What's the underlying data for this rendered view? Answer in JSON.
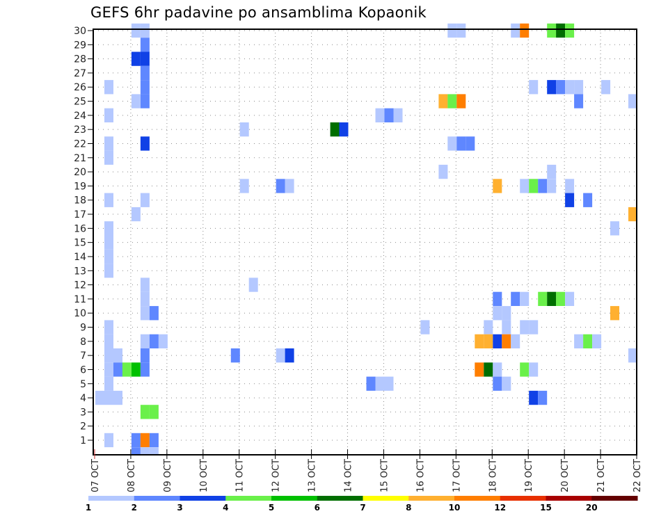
{
  "chart_data": {
    "type": "heatmap",
    "title": "GEFS 6hr padavine po ansamblima Kopaonik",
    "xlabel": "",
    "ylabel": "",
    "y_ticks": [
      "1",
      "2",
      "3",
      "4",
      "5",
      "6",
      "7",
      "8",
      "9",
      "10",
      "11",
      "12",
      "13",
      "14",
      "15",
      "16",
      "17",
      "18",
      "19",
      "20",
      "21",
      "22",
      "23",
      "24",
      "25",
      "26",
      "27",
      "28",
      "29",
      "30"
    ],
    "x_ticks": [
      "07 OCT",
      "08 OCT",
      "09 OCT",
      "10 OCT",
      "11 OCT",
      "12 OCT",
      "13 OCT",
      "14 OCT",
      "15 OCT",
      "16 OCT",
      "17 OCT",
      "18 OCT",
      "19 OCT",
      "20 OCT",
      "21 OCT",
      "22 OCT"
    ],
    "time_step_hours": 6,
    "grid": true,
    "colorbar": {
      "placement": "bottom",
      "labels": [
        "1",
        "2",
        "3",
        "4",
        "5",
        "6",
        "7",
        "8",
        "10",
        "12",
        "15",
        "20"
      ],
      "colors": [
        "#b4c8ff",
        "#5f87ff",
        "#1041e6",
        "#6af04a",
        "#00c000",
        "#006e00",
        "#ffff00",
        "#ffb030",
        "#ff7e00",
        "#e83000",
        "#a80000",
        "#640000"
      ]
    },
    "cells_note": "each cell: [member, six-hour step index from 07 OCT 00, color level index 1-12]",
    "cells": [
      [
        30,
        4,
        1
      ],
      [
        30,
        5,
        1
      ],
      [
        29,
        5,
        2
      ],
      [
        28,
        4,
        3
      ],
      [
        28,
        5,
        3
      ],
      [
        27,
        5,
        2
      ],
      [
        26,
        5,
        2
      ],
      [
        25,
        5,
        2
      ],
      [
        25,
        4,
        1
      ],
      [
        26,
        1,
        1
      ],
      [
        24,
        1,
        1
      ],
      [
        22,
        1,
        1
      ],
      [
        21,
        1,
        1
      ],
      [
        22,
        5,
        3
      ],
      [
        18,
        1,
        1
      ],
      [
        16,
        1,
        1
      ],
      [
        15,
        1,
        1
      ],
      [
        14,
        1,
        1
      ],
      [
        13,
        1,
        1
      ],
      [
        18,
        5,
        1
      ],
      [
        17,
        4,
        1
      ],
      [
        12,
        5,
        1
      ],
      [
        11,
        5,
        1
      ],
      [
        10,
        5,
        1
      ],
      [
        10,
        6,
        2
      ],
      [
        9,
        1,
        1
      ],
      [
        8,
        1,
        1
      ],
      [
        7,
        1,
        1
      ],
      [
        6,
        1,
        1
      ],
      [
        5,
        1,
        1
      ],
      [
        4,
        0,
        1
      ],
      [
        4,
        1,
        1
      ],
      [
        4,
        2,
        1
      ],
      [
        7,
        2,
        1
      ],
      [
        6,
        2,
        2
      ],
      [
        6,
        3,
        4
      ],
      [
        6,
        4,
        5
      ],
      [
        6,
        5,
        2
      ],
      [
        7,
        5,
        2
      ],
      [
        8,
        5,
        1
      ],
      [
        8,
        6,
        2
      ],
      [
        8,
        7,
        1
      ],
      [
        3,
        5,
        4
      ],
      [
        3,
        6,
        4
      ],
      [
        1,
        1,
        1
      ],
      [
        1,
        4,
        2
      ],
      [
        1,
        5,
        9
      ],
      [
        1,
        6,
        2
      ],
      [
        0,
        4,
        2
      ],
      [
        0,
        5,
        1
      ],
      [
        0,
        6,
        1
      ],
      [
        23,
        16,
        1
      ],
      [
        19,
        16,
        1
      ],
      [
        19,
        20,
        2
      ],
      [
        19,
        21,
        1
      ],
      [
        12,
        17,
        1
      ],
      [
        7,
        15,
        2
      ],
      [
        7,
        20,
        1
      ],
      [
        7,
        21,
        3
      ],
      [
        5,
        30,
        2
      ],
      [
        5,
        31,
        1
      ],
      [
        5,
        32,
        1
      ],
      [
        9,
        36,
        1
      ],
      [
        23,
        26,
        6
      ],
      [
        23,
        27,
        3
      ],
      [
        24,
        31,
        1
      ],
      [
        24,
        32,
        2
      ],
      [
        24,
        33,
        1
      ],
      [
        25,
        38,
        8
      ],
      [
        25,
        39,
        4
      ],
      [
        25,
        40,
        9
      ],
      [
        22,
        39,
        1
      ],
      [
        22,
        40,
        2
      ],
      [
        22,
        41,
        2
      ],
      [
        30,
        39,
        1
      ],
      [
        30,
        40,
        1
      ],
      [
        30,
        46,
        1
      ],
      [
        30,
        47,
        9
      ],
      [
        30,
        50,
        4
      ],
      [
        30,
        51,
        6
      ],
      [
        30,
        52,
        4
      ],
      [
        26,
        48,
        1
      ],
      [
        26,
        50,
        3
      ],
      [
        26,
        51,
        2
      ],
      [
        26,
        52,
        1
      ],
      [
        26,
        53,
        1
      ],
      [
        25,
        53,
        2
      ],
      [
        26,
        56,
        1
      ],
      [
        25,
        59,
        1
      ],
      [
        20,
        38,
        1
      ],
      [
        19,
        44,
        8
      ],
      [
        19,
        47,
        1
      ],
      [
        19,
        48,
        4
      ],
      [
        19,
        49,
        2
      ],
      [
        20,
        50,
        1
      ],
      [
        19,
        50,
        1
      ],
      [
        19,
        52,
        1
      ],
      [
        18,
        52,
        3
      ],
      [
        18,
        54,
        2
      ],
      [
        17,
        59,
        8
      ],
      [
        16,
        57,
        1
      ],
      [
        11,
        44,
        2
      ],
      [
        11,
        46,
        2
      ],
      [
        11,
        47,
        1
      ],
      [
        11,
        49,
        4
      ],
      [
        11,
        50,
        6
      ],
      [
        11,
        51,
        4
      ],
      [
        11,
        52,
        1
      ],
      [
        10,
        44,
        1
      ],
      [
        10,
        45,
        1
      ],
      [
        9,
        45,
        1
      ],
      [
        9,
        43,
        1
      ],
      [
        9,
        47,
        1
      ],
      [
        9,
        48,
        1
      ],
      [
        8,
        42,
        8
      ],
      [
        8,
        43,
        8
      ],
      [
        8,
        44,
        3
      ],
      [
        8,
        45,
        9
      ],
      [
        8,
        46,
        1
      ],
      [
        10,
        57,
        8
      ],
      [
        8,
        53,
        1
      ],
      [
        8,
        54,
        4
      ],
      [
        8,
        55,
        1
      ],
      [
        7,
        59,
        1
      ],
      [
        6,
        42,
        9
      ],
      [
        6,
        43,
        6
      ],
      [
        6,
        44,
        1
      ],
      [
        6,
        47,
        4
      ],
      [
        6,
        48,
        1
      ],
      [
        5,
        44,
        2
      ],
      [
        5,
        45,
        1
      ],
      [
        4,
        48,
        3
      ],
      [
        4,
        49,
        2
      ]
    ]
  }
}
